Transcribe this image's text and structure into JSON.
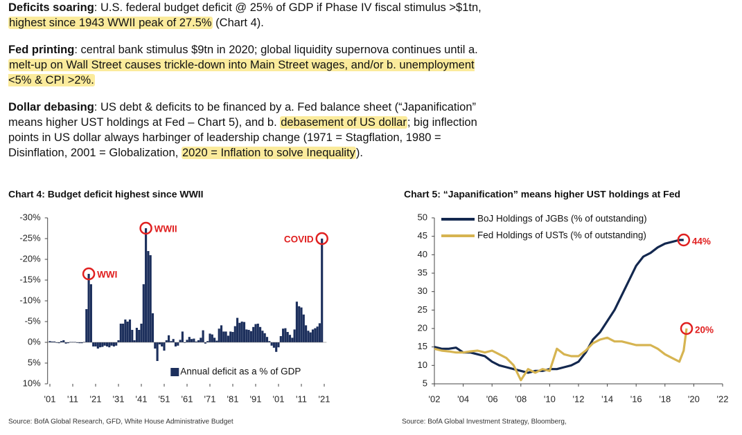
{
  "paragraphs": [
    {
      "segments": [
        {
          "text": "Deficits soaring",
          "style": "bold"
        },
        {
          "text": ": U.S. federal budget deficit @ 25% of GDP if Phase IV fiscal stimulus >$1tn, ",
          "style": "plain"
        },
        {
          "text": "highest since 1943 WWII peak of 27.5%",
          "style": "highlight"
        },
        {
          "text": " (Chart 4).",
          "style": "plain"
        }
      ]
    },
    {
      "segments": [
        {
          "text": "Fed printing",
          "style": "bold"
        },
        {
          "text": ": central bank stimulus $9tn in 2020; global liquidity supernova continues until a. ",
          "style": "plain"
        },
        {
          "text": "melt-up on Wall Street causes trickle-down into Main Street wages, and/or b. unemployment <5% & CPI >2%.",
          "style": "highlight"
        }
      ]
    },
    {
      "segments": [
        {
          "text": "Dollar debasing",
          "style": "bold"
        },
        {
          "text": ": US debt & deficits to be financed by a. Fed balance sheet (“Japanification” means higher UST holdings at Fed – Chart 5), and b. ",
          "style": "plain"
        },
        {
          "text": "debasement of US dollar",
          "style": "highlight"
        },
        {
          "text": "; big inflection points in US dollar always harbinger of leadership change (1971 = Stagflation, 1980 = Disinflation, 2001 = Globalization, ",
          "style": "plain"
        },
        {
          "text": "2020 = Inflation to solve Inequality",
          "style": "highlight"
        },
        {
          "text": ").",
          "style": "plain"
        }
      ]
    }
  ],
  "chart_data": [
    {
      "type": "bar",
      "title": "Chart 4: Budget deficit highest since WWII",
      "source": "Source: BofA Global Research, GFD, White House Administrative Budget",
      "x": [
        1901,
        1902,
        1903,
        1904,
        1905,
        1906,
        1907,
        1908,
        1909,
        1910,
        1911,
        1912,
        1913,
        1914,
        1915,
        1916,
        1917,
        1918,
        1919,
        1920,
        1921,
        1922,
        1923,
        1924,
        1925,
        1926,
        1927,
        1928,
        1929,
        1930,
        1931,
        1932,
        1933,
        1934,
        1935,
        1936,
        1937,
        1938,
        1939,
        1940,
        1941,
        1942,
        1943,
        1944,
        1945,
        1946,
        1947,
        1948,
        1949,
        1950,
        1951,
        1952,
        1953,
        1954,
        1955,
        1956,
        1957,
        1958,
        1959,
        1960,
        1961,
        1962,
        1963,
        1964,
        1965,
        1966,
        1967,
        1968,
        1969,
        1970,
        1971,
        1972,
        1973,
        1974,
        1975,
        1976,
        1977,
        1978,
        1979,
        1980,
        1981,
        1982,
        1983,
        1984,
        1985,
        1986,
        1987,
        1988,
        1989,
        1990,
        1991,
        1992,
        1993,
        1994,
        1995,
        1996,
        1997,
        1998,
        1999,
        2000,
        2001,
        2002,
        2003,
        2004,
        2005,
        2006,
        2007,
        2008,
        2009,
        2010,
        2011,
        2012,
        2013,
        2014,
        2015,
        2016,
        2017,
        2018,
        2019,
        2020
      ],
      "series": [
        {
          "name": "Annual deficit as a % of GDP",
          "color": "#1c2f5c",
          "values": [
            -0.3,
            -0.2,
            -0.2,
            0.1,
            0.2,
            -0.3,
            -0.5,
            0.3,
            0.2,
            -0.1,
            -0.1,
            -0.1,
            0.1,
            0.2,
            0.2,
            -0.1,
            -8,
            -16.5,
            -14,
            1,
            1,
            1.5,
            1.2,
            1.1,
            0.8,
            1,
            1.2,
            0.8,
            1,
            0.8,
            -0.5,
            -4.5,
            -4.5,
            -5.5,
            -5,
            -5.5,
            -3,
            -0.5,
            -3.5,
            -3,
            -4.5,
            -14,
            -27.5,
            -22,
            -21,
            -7,
            1.5,
            4.5,
            0.5,
            1,
            2,
            -0.5,
            -1.7,
            -0.3,
            -0.8,
            1,
            0.8,
            -0.6,
            -2.6,
            0.1,
            -0.6,
            -1.3,
            -0.8,
            -0.9,
            -0.2,
            -0.5,
            -1.1,
            -2.9,
            0.3,
            -0.3,
            -2.1,
            -1.9,
            -1.1,
            -0.4,
            -3.3,
            -4.1,
            -2.6,
            -2.6,
            -1.6,
            -2.6,
            -2.5,
            -3.9,
            -5.9,
            -4.7,
            -5,
            -4.9,
            -3.1,
            -3,
            -2.7,
            -3.7,
            -4.4,
            -4.5,
            -3.7,
            -2.8,
            -2.2,
            -1.3,
            -0.3,
            0.8,
            1.3,
            2.3,
            1.2,
            -1.5,
            -3.3,
            -3.4,
            -2.5,
            -1.8,
            -1.1,
            -3.1,
            -9.8,
            -8.7,
            -8.4,
            -6.7,
            -4.1,
            -2.8,
            -2.4,
            -3.1,
            -3.4,
            -3.8,
            -4.6,
            -25
          ]
        }
      ],
      "xlim": [
        1900,
        2022
      ],
      "xticks": [
        {
          "value": 1901,
          "label": "'01"
        },
        {
          "value": 1911,
          "label": "'11"
        },
        {
          "value": 1921,
          "label": "'21"
        },
        {
          "value": 1931,
          "label": "'31"
        },
        {
          "value": 1941,
          "label": "'41"
        },
        {
          "value": 1951,
          "label": "'51"
        },
        {
          "value": 1961,
          "label": "'61"
        },
        {
          "value": 1971,
          "label": "'71"
        },
        {
          "value": 1981,
          "label": "'81"
        },
        {
          "value": 1991,
          "label": "'91"
        },
        {
          "value": 2001,
          "label": "'01"
        },
        {
          "value": 2011,
          "label": "'11"
        },
        {
          "value": 2021,
          "label": "'21"
        }
      ],
      "ylim": [
        10,
        -30
      ],
      "yticks": [
        {
          "value": -30,
          "label": "-30%"
        },
        {
          "value": -25,
          "label": "-25%"
        },
        {
          "value": -20,
          "label": "-20%"
        },
        {
          "value": -15,
          "label": "-15%"
        },
        {
          "value": -10,
          "label": "-10%"
        },
        {
          "value": -5,
          "label": "-5%"
        },
        {
          "value": 0,
          "label": "0%"
        },
        {
          "value": 5,
          "label": "5%"
        },
        {
          "value": 10,
          "label": "10%"
        }
      ],
      "legend": "lower right",
      "grid": false,
      "annotations": [
        {
          "label": "WWI",
          "x": 1918,
          "y": -16.5,
          "color": "#e02020"
        },
        {
          "label": "WWII",
          "x": 1943,
          "y": -27.5,
          "color": "#e02020"
        },
        {
          "label": "COVID",
          "x": 2020,
          "y": -25,
          "color": "#e02020"
        }
      ]
    },
    {
      "type": "line",
      "title": "Chart 5: “Japanification” means higher UST holdings at Fed",
      "source": "Source: BofA Global Investment Strategy, Bloomberg,",
      "x": [
        2002,
        2002.5,
        2003,
        2003.5,
        2004,
        2004.5,
        2005,
        2005.5,
        2006,
        2006.5,
        2007,
        2007.5,
        2008,
        2008.5,
        2009,
        2009.5,
        2010,
        2010.5,
        2011,
        2011.5,
        2012,
        2012.5,
        2013,
        2013.5,
        2014,
        2014.5,
        2015,
        2015.5,
        2016,
        2016.5,
        2017,
        2017.5,
        2018,
        2018.5,
        2019,
        2019.3,
        2019.5
      ],
      "series": [
        {
          "name": "BoJ Holdings of JGBs (% of outstanding)",
          "color": "#13284f",
          "values": [
            15,
            14.5,
            14.5,
            14.8,
            13.5,
            13.5,
            13,
            12.5,
            11,
            10,
            9.5,
            9,
            8.5,
            8,
            8.5,
            8.5,
            9,
            9,
            9.5,
            10,
            11,
            13.5,
            17,
            19,
            22,
            25,
            29,
            33,
            37,
            39.5,
            40.5,
            42,
            43,
            43.5,
            44,
            44,
            null
          ]
        },
        {
          "name": "Fed Holdings of USTs (% of outstanding)",
          "color": "#d6b451",
          "values": [
            14.5,
            14,
            13.8,
            13.5,
            13.5,
            13.8,
            14,
            13.5,
            14,
            13,
            12,
            10,
            6,
            9,
            8,
            9,
            8.5,
            14.5,
            13,
            12.5,
            12.5,
            14,
            16,
            17,
            17.5,
            16.5,
            16.5,
            16,
            15.5,
            15.5,
            15.5,
            14.5,
            13,
            12,
            11,
            14,
            20
          ]
        }
      ],
      "xlim": [
        2002,
        2022
      ],
      "xticks": [
        {
          "value": 2002,
          "label": "'02"
        },
        {
          "value": 2004,
          "label": "'04"
        },
        {
          "value": 2006,
          "label": "'06"
        },
        {
          "value": 2008,
          "label": "'08"
        },
        {
          "value": 2010,
          "label": "'10"
        },
        {
          "value": 2012,
          "label": "'12"
        },
        {
          "value": 2014,
          "label": "'14"
        },
        {
          "value": 2016,
          "label": "'16"
        },
        {
          "value": 2018,
          "label": "'18"
        },
        {
          "value": 2020,
          "label": "'20"
        },
        {
          "value": 2022,
          "label": "'22"
        }
      ],
      "ylim": [
        5,
        50
      ],
      "yticks": [
        5,
        10,
        15,
        20,
        25,
        30,
        35,
        40,
        45,
        50
      ],
      "legend": "upper left",
      "grid": false,
      "annotations": [
        {
          "label": "44%",
          "x": 2019.3,
          "y": 44,
          "color": "#e02020"
        },
        {
          "label": "20%",
          "x": 2019.5,
          "y": 20,
          "color": "#e02020"
        }
      ]
    }
  ]
}
